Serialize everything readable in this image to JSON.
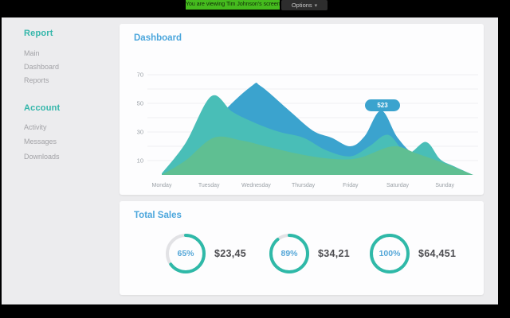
{
  "topbar": {
    "viewing_banner": "You are viewing Tim Johnson's screen.",
    "options_label": "Options",
    "banner_bg": "#45bb1e"
  },
  "sidebar": {
    "accent_color": "#33b6aa",
    "sections": [
      {
        "title": "Report",
        "items": [
          "Main",
          "Dashboard",
          "Reports"
        ]
      },
      {
        "title": "Account",
        "items": [
          "Activity",
          "Messages",
          "Downloads"
        ]
      }
    ]
  },
  "dashboard_card": {
    "title": "Dashboard"
  },
  "chart_data": {
    "type": "area",
    "title": "Dashboard",
    "categories": [
      "Monday",
      "Tuesday",
      "Wednesday",
      "Thursday",
      "Friday",
      "Saturday",
      "Sunday"
    ],
    "ylim": [
      0,
      70
    ],
    "yticks_labeled": [
      10,
      30,
      50,
      70
    ],
    "grid_step": 10,
    "grid_on": true,
    "tooltip": {
      "label": "523",
      "near_category": "Saturday",
      "value": 45
    },
    "series": [
      {
        "name": "series-blue",
        "color": "#3ba3ce",
        "day_values": [
          1,
          40,
          62,
          31,
          20,
          45,
          9
        ],
        "points": [
          [
            0,
            1
          ],
          [
            0.6,
            10
          ],
          [
            1.2,
            40
          ],
          [
            1.9,
            62
          ],
          [
            2.1,
            62
          ],
          [
            2.7,
            45
          ],
          [
            3.2,
            31
          ],
          [
            3.6,
            26
          ],
          [
            4.0,
            20
          ],
          [
            4.3,
            27
          ],
          [
            4.65,
            45
          ],
          [
            5.0,
            26
          ],
          [
            5.4,
            13
          ],
          [
            5.9,
            9
          ],
          [
            6.6,
            0
          ]
        ]
      },
      {
        "name": "series-teal",
        "color": "#49beb7",
        "day_values": [
          1,
          55,
          36,
          26,
          13,
          28,
          11
        ],
        "points": [
          [
            0,
            1
          ],
          [
            0.5,
            22
          ],
          [
            1.05,
            55
          ],
          [
            1.5,
            44
          ],
          [
            2.0,
            36
          ],
          [
            2.5,
            30
          ],
          [
            3.0,
            26
          ],
          [
            3.5,
            17
          ],
          [
            4.0,
            13
          ],
          [
            4.4,
            20
          ],
          [
            4.8,
            28
          ],
          [
            5.2,
            15
          ],
          [
            5.6,
            23
          ],
          [
            5.9,
            11
          ],
          [
            6.2,
            6
          ],
          [
            6.6,
            0
          ]
        ]
      },
      {
        "name": "series-green",
        "color": "#5fbf92",
        "day_values": [
          0,
          26,
          21,
          14,
          11,
          20,
          8
        ],
        "points": [
          [
            0,
            0
          ],
          [
            0.5,
            10
          ],
          [
            1.1,
            26
          ],
          [
            1.7,
            24
          ],
          [
            2.2,
            20
          ],
          [
            3.0,
            14
          ],
          [
            3.7,
            11
          ],
          [
            4.2,
            12
          ],
          [
            4.9,
            20
          ],
          [
            5.4,
            15
          ],
          [
            6.0,
            8
          ],
          [
            6.6,
            0
          ]
        ]
      }
    ],
    "axis_label_color": "#9aa0a6",
    "gridline_color": "#f0f0f1"
  },
  "total_sales": {
    "title": "Total Sales",
    "ring_color": "#2fb9a8",
    "ring_track_color": "#e2e2e5",
    "percent_color": "#55a7d8",
    "stats": [
      {
        "percent": "65%",
        "pct": 65,
        "amount": "$23,45"
      },
      {
        "percent": "89%",
        "pct": 89,
        "amount": "$34,21"
      },
      {
        "percent": "100%",
        "pct": 100,
        "amount": "$64,451"
      }
    ]
  }
}
